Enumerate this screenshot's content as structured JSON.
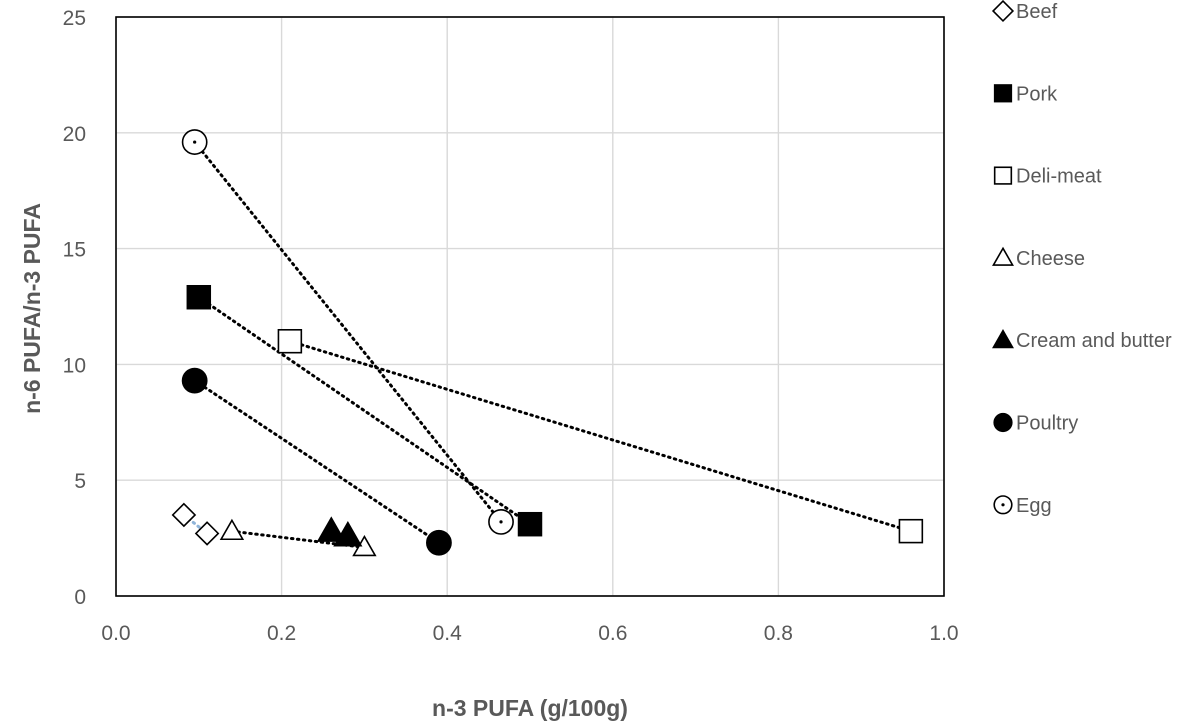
{
  "chart_data": {
    "type": "scatter",
    "title": "",
    "xlabel": "n-3 PUFA (g/100g)",
    "ylabel": "n-6 PUFA/n-3 PUFA",
    "xlim": [
      0,
      1.0
    ],
    "ylim": [
      0,
      25
    ],
    "x_ticks": [
      "0.0",
      "0.2",
      "0.4",
      "0.6",
      "0.8",
      "1.0"
    ],
    "y_ticks": [
      "0",
      "5",
      "10",
      "15",
      "20",
      "25"
    ],
    "grid": true,
    "legend_position": "right",
    "series": [
      {
        "name": "Beef",
        "marker": "diamond-open",
        "line_color": "#8fb4d9",
        "points": [
          {
            "x": 0.082,
            "y": 3.5
          },
          {
            "x": 0.11,
            "y": 2.7
          }
        ]
      },
      {
        "name": "Pork",
        "marker": "square-filled",
        "line_color": "#000000",
        "points": [
          {
            "x": 0.1,
            "y": 12.9
          },
          {
            "x": 0.5,
            "y": 3.1
          }
        ]
      },
      {
        "name": "Deli-meat",
        "marker": "square-open",
        "line_color": "#000000",
        "points": [
          {
            "x": 0.21,
            "y": 11.0
          },
          {
            "x": 0.96,
            "y": 2.8
          }
        ]
      },
      {
        "name": "Cheese",
        "marker": "triangle-open",
        "line_color": "#000000",
        "points": [
          {
            "x": 0.14,
            "y": 2.8
          },
          {
            "x": 0.3,
            "y": 2.1
          }
        ]
      },
      {
        "name": "Cream and butter",
        "marker": "triangle-filled",
        "line_color": "#000000",
        "points": [
          {
            "x": 0.26,
            "y": 2.8
          },
          {
            "x": 0.28,
            "y": 2.6
          }
        ]
      },
      {
        "name": "Poultry",
        "marker": "circle-filled",
        "line_color": "#000000",
        "points": [
          {
            "x": 0.095,
            "y": 9.3
          },
          {
            "x": 0.39,
            "y": 2.3
          }
        ]
      },
      {
        "name": "Egg",
        "marker": "circle-open",
        "line_color": "#000000",
        "points": [
          {
            "x": 0.095,
            "y": 19.6
          },
          {
            "x": 0.465,
            "y": 3.2
          }
        ]
      }
    ]
  }
}
